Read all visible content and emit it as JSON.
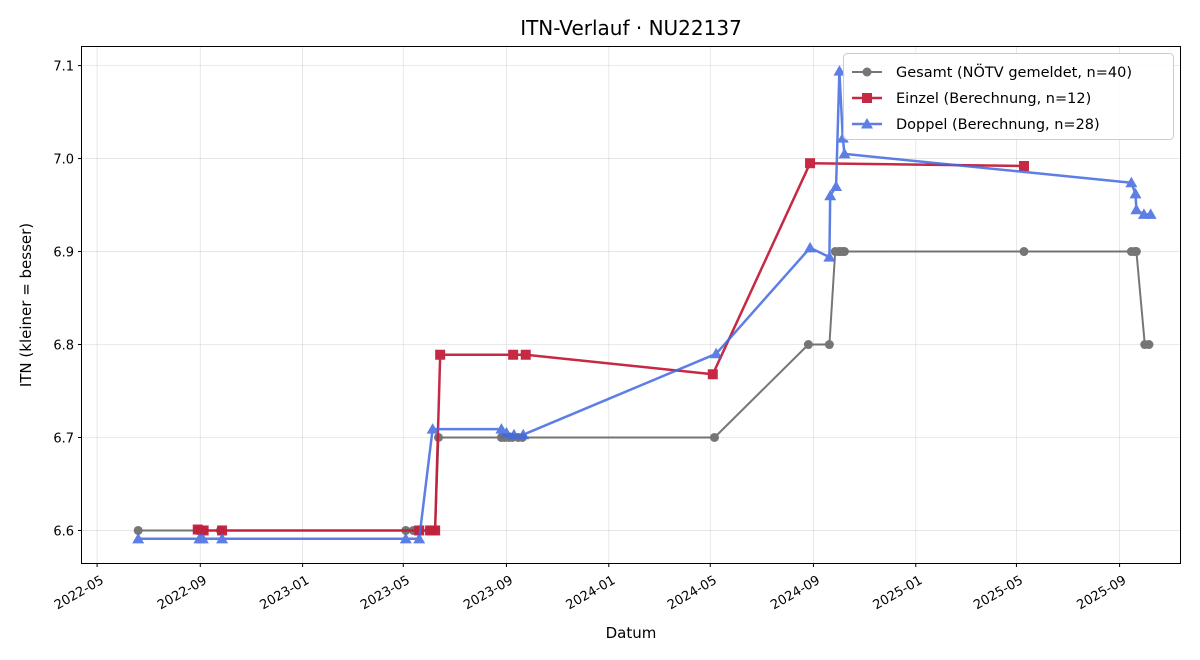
{
  "chart_data": {
    "type": "line",
    "title": "ITN-Verlauf · NU22137",
    "xlabel": "Datum",
    "ylabel": "ITN  (kleiner = besser)",
    "x_axis": "date",
    "xlim": [
      "2022-04-13",
      "2025-11-12"
    ],
    "ylim": [
      6.565,
      7.12
    ],
    "x_ticks": [
      "2022-05-01",
      "2022-09-01",
      "2023-01-01",
      "2023-05-01",
      "2023-09-01",
      "2024-01-01",
      "2024-05-01",
      "2024-09-01",
      "2025-01-01",
      "2025-05-01",
      "2025-09-01"
    ],
    "x_tick_labels": [
      "2022-05",
      "2022-09",
      "2023-01",
      "2023-05",
      "2023-09",
      "2024-01",
      "2024-05",
      "2024-09",
      "2025-01",
      "2025-05",
      "2025-09"
    ],
    "y_ticks": [
      6.6,
      6.7,
      6.8,
      6.9,
      7.0,
      7.1
    ],
    "y_tick_labels": [
      "6.6",
      "6.7",
      "6.8",
      "6.9",
      "7.0",
      "7.1"
    ],
    "grid": true,
    "legend_position": "top-right",
    "series": [
      {
        "name": "Gesamt (NÖTV gemeldet, n=40)",
        "color": "#555555",
        "marker": "circle",
        "points": [
          {
            "x": "2022-06-19",
            "y": 6.6
          },
          {
            "x": "2022-08-29",
            "y": 6.6
          },
          {
            "x": "2022-09-01",
            "y": 6.6
          },
          {
            "x": "2022-09-05",
            "y": 6.6
          },
          {
            "x": "2022-09-25",
            "y": 6.6
          },
          {
            "x": "2023-05-04",
            "y": 6.6
          },
          {
            "x": "2023-05-13",
            "y": 6.6
          },
          {
            "x": "2023-05-20",
            "y": 6.6
          },
          {
            "x": "2023-06-01",
            "y": 6.6
          },
          {
            "x": "2023-06-08",
            "y": 6.6
          },
          {
            "x": "2023-06-12",
            "y": 6.7
          },
          {
            "x": "2023-08-26",
            "y": 6.7
          },
          {
            "x": "2023-08-30",
            "y": 6.7
          },
          {
            "x": "2023-09-04",
            "y": 6.7
          },
          {
            "x": "2023-09-08",
            "y": 6.7
          },
          {
            "x": "2023-09-15",
            "y": 6.7
          },
          {
            "x": "2023-09-20",
            "y": 6.7
          },
          {
            "x": "2024-05-06",
            "y": 6.7
          },
          {
            "x": "2024-08-26",
            "y": 6.8
          },
          {
            "x": "2024-09-20",
            "y": 6.8
          },
          {
            "x": "2024-09-27",
            "y": 6.9
          },
          {
            "x": "2024-10-01",
            "y": 6.9
          },
          {
            "x": "2024-10-03",
            "y": 6.9
          },
          {
            "x": "2024-10-06",
            "y": 6.9
          },
          {
            "x": "2024-10-08",
            "y": 6.9
          },
          {
            "x": "2025-05-10",
            "y": 6.9
          },
          {
            "x": "2025-09-15",
            "y": 6.9
          },
          {
            "x": "2025-09-19",
            "y": 6.9
          },
          {
            "x": "2025-09-21",
            "y": 6.9
          },
          {
            "x": "2025-10-01",
            "y": 6.8
          },
          {
            "x": "2025-10-06",
            "y": 6.8
          }
        ]
      },
      {
        "name": "Einzel (Berechnung, n=12)",
        "color": "#c41e3a",
        "marker": "square",
        "points": [
          {
            "x": "2022-08-29",
            "y": 6.601
          },
          {
            "x": "2022-09-05",
            "y": 6.6
          },
          {
            "x": "2022-09-27",
            "y": 6.6
          },
          {
            "x": "2023-05-20",
            "y": 6.6
          },
          {
            "x": "2023-06-02",
            "y": 6.6
          },
          {
            "x": "2023-06-08",
            "y": 6.6
          },
          {
            "x": "2023-06-14",
            "y": 6.789
          },
          {
            "x": "2023-09-09",
            "y": 6.789
          },
          {
            "x": "2023-09-24",
            "y": 6.789
          },
          {
            "x": "2024-05-04",
            "y": 6.768
          },
          {
            "x": "2024-08-28",
            "y": 6.995
          },
          {
            "x": "2025-05-10",
            "y": 6.992
          }
        ]
      },
      {
        "name": "Doppel (Berechnung, n=28)",
        "color": "#4169e1",
        "marker": "triangle",
        "points": [
          {
            "x": "2022-06-19",
            "y": 6.591
          },
          {
            "x": "2022-08-31",
            "y": 6.591
          },
          {
            "x": "2022-09-04",
            "y": 6.591
          },
          {
            "x": "2022-09-27",
            "y": 6.591
          },
          {
            "x": "2023-05-04",
            "y": 6.591
          },
          {
            "x": "2023-05-20",
            "y": 6.591
          },
          {
            "x": "2023-06-05",
            "y": 6.709
          },
          {
            "x": "2023-08-26",
            "y": 6.709
          },
          {
            "x": "2023-09-01",
            "y": 6.705
          },
          {
            "x": "2023-09-10",
            "y": 6.703
          },
          {
            "x": "2023-09-21",
            "y": 6.703
          },
          {
            "x": "2024-05-08",
            "y": 6.79
          },
          {
            "x": "2024-08-28",
            "y": 6.904
          },
          {
            "x": "2024-09-20",
            "y": 6.894
          },
          {
            "x": "2024-09-21",
            "y": 6.96
          },
          {
            "x": "2024-09-28",
            "y": 6.97
          },
          {
            "x": "2024-10-02",
            "y": 7.094
          },
          {
            "x": "2024-10-06",
            "y": 7.022
          },
          {
            "x": "2024-10-08",
            "y": 7.005
          },
          {
            "x": "2025-09-15",
            "y": 6.974
          },
          {
            "x": "2025-09-20",
            "y": 6.962
          },
          {
            "x": "2025-09-21",
            "y": 6.945
          },
          {
            "x": "2025-09-30",
            "y": 6.94
          },
          {
            "x": "2025-10-08",
            "y": 6.94
          }
        ]
      }
    ]
  }
}
